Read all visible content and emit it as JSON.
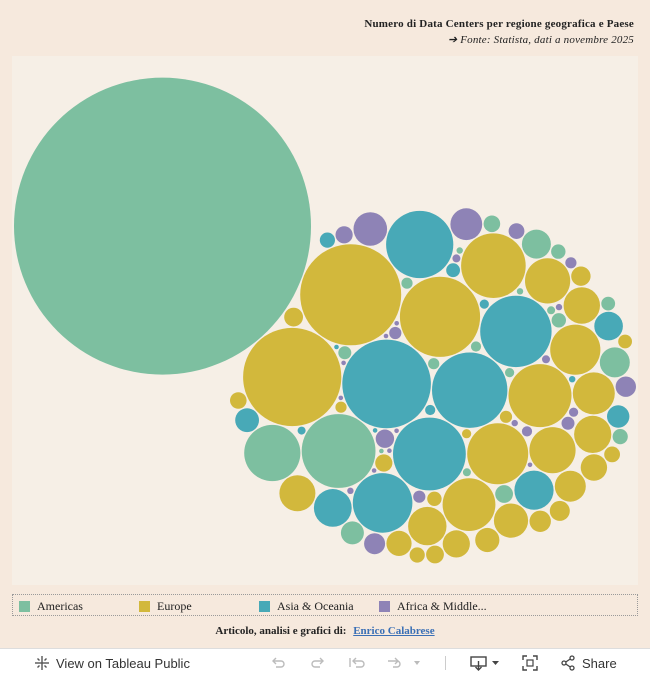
{
  "header": {
    "title": "Numero di Data Centers per regione geografica e Paese",
    "source": "➔ Fonte:   Statista, dati a novembre 2025"
  },
  "chart_data": {
    "type": "packed-bubble",
    "colors": {
      "Americas": "#7dbfa0",
      "Europe": "#d2b83c",
      "Asia & Oceania": "#48a9b7",
      "Africa & Middle East": "#8e83b6"
    },
    "legend_placement": "bottom",
    "legend": [
      {
        "label": "Americas",
        "color": "#7dbfa0"
      },
      {
        "label": "Europe",
        "color": "#d2b83c"
      },
      {
        "label": "Asia & Oceania",
        "color": "#48a9b7"
      },
      {
        "label": "Africa & Middle...",
        "color": "#8e83b6"
      }
    ],
    "bubbles": [
      {
        "region": "Americas",
        "v": 4200
      },
      {
        "region": "Europe",
        "v": 485
      },
      {
        "region": "Europe",
        "v": 459
      },
      {
        "region": "Asia & Oceania",
        "v": 373
      },
      {
        "region": "Europe",
        "v": 307
      },
      {
        "region": "Asia & Oceania",
        "v": 270
      },
      {
        "region": "Americas",
        "v": 259
      },
      {
        "region": "Asia & Oceania",
        "v": 253
      },
      {
        "region": "Asia & Oceania",
        "v": 243
      },
      {
        "region": "Asia & Oceania",
        "v": 215
      },
      {
        "region": "Europe",
        "v": 199
      },
      {
        "region": "Europe",
        "v": 189
      },
      {
        "region": "Europe",
        "v": 177
      },
      {
        "region": "Asia & Oceania",
        "v": 169
      },
      {
        "region": "Americas",
        "v": 150
      },
      {
        "region": "Europe",
        "v": 133
      },
      {
        "region": "Europe",
        "v": 120
      },
      {
        "region": "Europe",
        "v": 102
      },
      {
        "region": "Europe",
        "v": 97
      },
      {
        "region": "Europe",
        "v": 84
      },
      {
        "region": "Asia & Oceania",
        "v": 73
      },
      {
        "region": "Europe",
        "v": 70
      },
      {
        "region": "Asia & Oceania",
        "v": 68
      },
      {
        "region": "Europe",
        "v": 66
      },
      {
        "region": "Europe",
        "v": 63
      },
      {
        "region": "Europe",
        "v": 62
      },
      {
        "region": "Europe",
        "v": 56
      },
      {
        "region": "Africa & Middle East",
        "v": 54
      },
      {
        "region": "Africa & Middle East",
        "v": 48
      },
      {
        "region": "Europe",
        "v": 46
      },
      {
        "region": "Americas",
        "v": 43
      },
      {
        "region": "Americas",
        "v": 40
      },
      {
        "region": "Asia & Oceania",
        "v": 39
      },
      {
        "region": "Europe",
        "v": 35
      },
      {
        "region": "Europe",
        "v": 33
      },
      {
        "region": "Europe",
        "v": 30
      },
      {
        "region": "Europe",
        "v": 28
      },
      {
        "region": "Asia & Oceania",
        "v": 27
      },
      {
        "region": "Americas",
        "v": 25
      },
      {
        "region": "Asia & Oceania",
        "v": 24
      },
      {
        "region": "Europe",
        "v": 22
      },
      {
        "region": "Africa & Middle East",
        "v": 21
      },
      {
        "region": "Africa & Middle East",
        "v": 20
      },
      {
        "region": "Europe",
        "v": 19
      },
      {
        "region": "Europe",
        "v": 18
      },
      {
        "region": "Europe",
        "v": 17
      },
      {
        "region": "Africa & Middle East",
        "v": 16
      },
      {
        "region": "Americas",
        "v": 15
      },
      {
        "region": "Europe",
        "v": 15
      },
      {
        "region": "Europe",
        "v": 14
      },
      {
        "region": "Africa & Middle East",
        "v": 14
      },
      {
        "region": "Americas",
        "v": 13
      },
      {
        "region": "Europe",
        "v": 13
      },
      {
        "region": "Europe",
        "v": 12
      },
      {
        "region": "Africa & Middle East",
        "v": 12
      },
      {
        "region": "Americas",
        "v": 11
      },
      {
        "region": "Europe",
        "v": 11
      },
      {
        "region": "Asia & Oceania",
        "v": 11
      },
      {
        "region": "Europe",
        "v": 10
      },
      {
        "region": "Americas",
        "v": 10
      },
      {
        "region": "Americas",
        "v": 10
      },
      {
        "region": "Asia & Oceania",
        "v": 9
      },
      {
        "region": "Europe",
        "v": 9
      },
      {
        "region": "Americas",
        "v": 9
      },
      {
        "region": "Americas",
        "v": 8
      },
      {
        "region": "Africa & Middle East",
        "v": 8
      },
      {
        "region": "Africa & Middle East",
        "v": 7
      },
      {
        "region": "Europe",
        "v": 7
      },
      {
        "region": "Africa & Middle East",
        "v": 7
      },
      {
        "region": "Americas",
        "v": 6
      },
      {
        "region": "Europe",
        "v": 6
      },
      {
        "region": "Americas",
        "v": 6
      },
      {
        "region": "Africa & Middle East",
        "v": 6
      },
      {
        "region": "Asia & Oceania",
        "v": 5
      },
      {
        "region": "Americas",
        "v": 5
      },
      {
        "region": "Africa & Middle East",
        "v": 5
      },
      {
        "region": "Europe",
        "v": 4
      },
      {
        "region": "Americas",
        "v": 4
      },
      {
        "region": "Asia & Oceania",
        "v": 4
      },
      {
        "region": "Africa & Middle East",
        "v": 4
      },
      {
        "region": "Americas",
        "v": 3
      },
      {
        "region": "Africa & Middle East",
        "v": 3
      },
      {
        "region": "Asia & Oceania",
        "v": 3
      },
      {
        "region": "Americas",
        "v": 3
      },
      {
        "region": "Africa & Middle East",
        "v": 3
      },
      {
        "region": "Africa & Middle East",
        "v": 2
      },
      {
        "region": "Americas",
        "v": 2
      },
      {
        "region": "Asia & Oceania",
        "v": 2
      },
      {
        "region": "Africa & Middle East",
        "v": 2
      },
      {
        "region": "Africa & Middle East",
        "v": 2
      },
      {
        "region": "Americas",
        "v": 2
      },
      {
        "region": "Africa & Middle East",
        "v": 1
      },
      {
        "region": "Africa & Middle East",
        "v": 1
      },
      {
        "region": "Asia & Oceania",
        "v": 1
      },
      {
        "region": "Africa & Middle East",
        "v": 1
      },
      {
        "region": "Africa & Middle East",
        "v": 1
      },
      {
        "region": "Americas",
        "v": 1
      },
      {
        "region": "Africa & Middle East",
        "v": 1
      },
      {
        "region": "Africa & Middle East",
        "v": 1
      },
      {
        "region": "Asia & Oceania",
        "v": 1
      },
      {
        "region": "Africa & Middle East",
        "v": 1
      },
      {
        "region": "Africa & Middle East",
        "v": 1
      }
    ]
  },
  "credit": {
    "prefix": "Articolo, analisi e grafici di:",
    "author": "Enrico Calabrese"
  },
  "toolbar": {
    "view_label": "View on Tableau Public",
    "share_label": "Share"
  }
}
